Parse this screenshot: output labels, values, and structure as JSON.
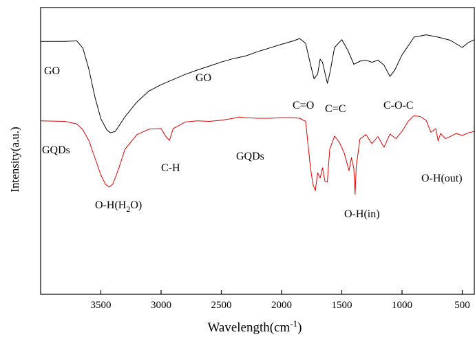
{
  "chart_data": {
    "type": "line",
    "title": "",
    "xlabel": "Wavelength(cm",
    "xlabel_sup": "-1",
    "xlabel_close": ")",
    "ylabel": "Intensity(a.u.)",
    "xlim": [
      4000,
      400
    ],
    "x_reversed": true,
    "ylim": [
      0,
      100
    ],
    "y_ticks_shown": false,
    "x_ticks": [
      3500,
      3000,
      2500,
      2000,
      1500,
      1000,
      500
    ],
    "x_tick_labels": [
      "3500",
      "3000",
      "2500",
      "2000",
      "1500",
      "1000",
      "500"
    ],
    "grid": false,
    "legend": "none",
    "series": [
      {
        "name": "GO",
        "color": "#000000",
        "points": [
          [
            4000,
            88.2
          ],
          [
            3800,
            88.2
          ],
          [
            3700,
            88.4
          ],
          [
            3650,
            85.9
          ],
          [
            3600,
            78.6
          ],
          [
            3550,
            68.9
          ],
          [
            3500,
            61.2
          ],
          [
            3450,
            57.3
          ],
          [
            3420,
            56.3
          ],
          [
            3380,
            56.8
          ],
          [
            3300,
            61.9
          ],
          [
            3200,
            67.1
          ],
          [
            3100,
            70.9
          ],
          [
            3000,
            73.1
          ],
          [
            2900,
            74.9
          ],
          [
            2800,
            76.7
          ],
          [
            2700,
            78.2
          ],
          [
            2600,
            79.6
          ],
          [
            2500,
            81.0
          ],
          [
            2400,
            82.2
          ],
          [
            2300,
            83.1
          ],
          [
            2200,
            84.6
          ],
          [
            2100,
            85.9
          ],
          [
            2000,
            87.2
          ],
          [
            1900,
            88.4
          ],
          [
            1850,
            89.2
          ],
          [
            1800,
            87.5
          ],
          [
            1760,
            80.2
          ],
          [
            1730,
            75.1
          ],
          [
            1700,
            76.9
          ],
          [
            1680,
            82.0
          ],
          [
            1660,
            80.9
          ],
          [
            1620,
            73.6
          ],
          [
            1600,
            76.9
          ],
          [
            1560,
            86.1
          ],
          [
            1500,
            88.8
          ],
          [
            1450,
            85.1
          ],
          [
            1400,
            80.2
          ],
          [
            1350,
            81.3
          ],
          [
            1300,
            81.7
          ],
          [
            1250,
            80.9
          ],
          [
            1200,
            81.7
          ],
          [
            1150,
            79.9
          ],
          [
            1100,
            76.0
          ],
          [
            1060,
            78.2
          ],
          [
            1000,
            83.5
          ],
          [
            900,
            89.7
          ],
          [
            800,
            90.5
          ],
          [
            700,
            89.7
          ],
          [
            600,
            88.6
          ],
          [
            500,
            86.1
          ],
          [
            450,
            87.8
          ],
          [
            400,
            88.8
          ]
        ]
      },
      {
        "name": "GQDs",
        "color": "#e00000",
        "points": [
          [
            4000,
            60.5
          ],
          [
            3800,
            60.3
          ],
          [
            3700,
            59.4
          ],
          [
            3650,
            57.4
          ],
          [
            3600,
            53.7
          ],
          [
            3550,
            47.6
          ],
          [
            3500,
            41.6
          ],
          [
            3460,
            38.3
          ],
          [
            3430,
            37.4
          ],
          [
            3400,
            38.5
          ],
          [
            3350,
            44.1
          ],
          [
            3300,
            50.6
          ],
          [
            3200,
            55.7
          ],
          [
            3100,
            57.6
          ],
          [
            3000,
            57.8
          ],
          [
            2960,
            55.0
          ],
          [
            2930,
            53.7
          ],
          [
            2900,
            57.8
          ],
          [
            2850,
            58.9
          ],
          [
            2800,
            60.1
          ],
          [
            2700,
            60.5
          ],
          [
            2600,
            60.3
          ],
          [
            2500,
            60.7
          ],
          [
            2400,
            61.4
          ],
          [
            2350,
            61.8
          ],
          [
            2300,
            61.6
          ],
          [
            2200,
            61.4
          ],
          [
            2100,
            61.4
          ],
          [
            2000,
            61.6
          ],
          [
            1900,
            61.6
          ],
          [
            1850,
            61.4
          ],
          [
            1800,
            60.3
          ],
          [
            1780,
            52.1
          ],
          [
            1760,
            44.1
          ],
          [
            1740,
            38.5
          ],
          [
            1720,
            36.1
          ],
          [
            1700,
            42.4
          ],
          [
            1680,
            40.5
          ],
          [
            1660,
            44.1
          ],
          [
            1640,
            39.4
          ],
          [
            1620,
            39.2
          ],
          [
            1600,
            50.6
          ],
          [
            1560,
            55.2
          ],
          [
            1520,
            53.0
          ],
          [
            1480,
            49.3
          ],
          [
            1440,
            43.1
          ],
          [
            1420,
            47.6
          ],
          [
            1400,
            43.9
          ],
          [
            1390,
            34.8
          ],
          [
            1380,
            44.5
          ],
          [
            1350,
            54.1
          ],
          [
            1300,
            55.7
          ],
          [
            1250,
            52.6
          ],
          [
            1200,
            55.0
          ],
          [
            1150,
            51.3
          ],
          [
            1100,
            55.9
          ],
          [
            1050,
            54.3
          ],
          [
            1000,
            56.8
          ],
          [
            950,
            60.3
          ],
          [
            900,
            62.3
          ],
          [
            850,
            62.0
          ],
          [
            800,
            60.7
          ],
          [
            760,
            56.5
          ],
          [
            720,
            57.8
          ],
          [
            700,
            53.5
          ],
          [
            680,
            56.1
          ],
          [
            640,
            54.3
          ],
          [
            600,
            55.0
          ],
          [
            550,
            56.1
          ],
          [
            500,
            55.4
          ],
          [
            450,
            56.3
          ],
          [
            400,
            56.8
          ]
        ]
      }
    ],
    "annotations": {
      "go_left": "GO",
      "go_mid": "GO",
      "co": "C=O",
      "cc": "C=C",
      "coc": "C-O-C",
      "gqds_left": "GQDs",
      "gqds_mid": "GQDs",
      "ch": "C-H",
      "oh_h2o_main": "O-H(H",
      "oh_h2o_sub": "2",
      "oh_h2o_tail": "O)",
      "oh_in": "O-H(in)",
      "oh_out": "O-H(out)"
    }
  }
}
